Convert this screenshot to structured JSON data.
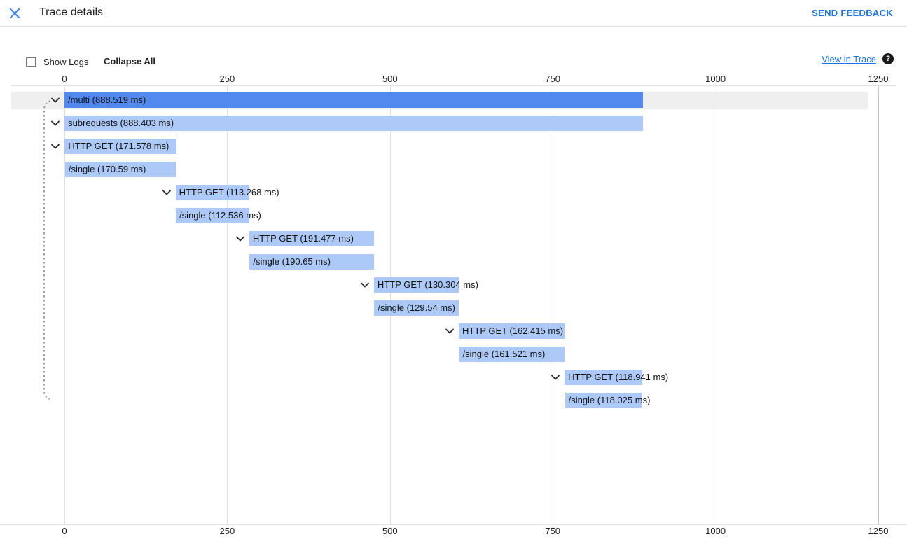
{
  "header": {
    "title": "Trace details",
    "close_icon": "close-x",
    "send_feedback_label": "SEND FEEDBACK"
  },
  "toolbar": {
    "show_logs_label": "Show Logs",
    "show_logs_checked": false,
    "collapse_all_label": "Collapse All",
    "view_in_trace_label": "View in Trace",
    "help_icon": "question-mark-circle"
  },
  "colors": {
    "accent_blue": "#1a73e8",
    "close_icon_blue": "#4285f4",
    "bar_selected": "#5189ee",
    "bar_normal": "#adc9f7",
    "selected_row_background": "#efefef",
    "gridline": "#e0e0e0",
    "trace_end_gridline": "#c8c8c8",
    "text": "#212121",
    "connector_dotted_line": "#9e9e9e"
  },
  "chart_data": {
    "type": "bar",
    "variant": "horizontal-trace-waterfall",
    "title": "Trace details",
    "unit": "ms",
    "xlim": [
      0,
      1250
    ],
    "axis_ticks_ms": [
      0,
      250,
      500,
      750,
      1000,
      1250
    ],
    "axis_shown": [
      "top",
      "bottom"
    ],
    "grid": true,
    "spans": [
      {
        "name": "/multi",
        "label": "/multi (888.519 ms)",
        "start_ms": 0,
        "duration_ms": 888.519,
        "expandable": true,
        "selected": true
      },
      {
        "name": "subrequests",
        "label": "subrequests (888.403 ms)",
        "start_ms": 0.1,
        "duration_ms": 888.403,
        "expandable": true,
        "selected": false
      },
      {
        "name": "HTTP GET",
        "label": "HTTP GET (171.578 ms)",
        "start_ms": 0.4,
        "duration_ms": 171.578,
        "expandable": true,
        "selected": false
      },
      {
        "name": "/single",
        "label": "/single (170.59 ms)",
        "start_ms": 0.9,
        "duration_ms": 170.59,
        "expandable": false,
        "selected": false
      },
      {
        "name": "HTTP GET",
        "label": "HTTP GET (113.268 ms)",
        "start_ms": 170.6,
        "duration_ms": 113.268,
        "expandable": true,
        "selected": false
      },
      {
        "name": "/single",
        "label": "/single (112.536 ms)",
        "start_ms": 171.1,
        "duration_ms": 112.536,
        "expandable": false,
        "selected": false
      },
      {
        "name": "HTTP GET",
        "label": "HTTP GET (191.477 ms)",
        "start_ms": 283.9,
        "duration_ms": 191.477,
        "expandable": true,
        "selected": false
      },
      {
        "name": "/single",
        "label": "/single (190.65 ms)",
        "start_ms": 284.4,
        "duration_ms": 190.65,
        "expandable": false,
        "selected": false
      },
      {
        "name": "HTTP GET",
        "label": "HTTP GET (130.304 ms)",
        "start_ms": 475.4,
        "duration_ms": 130.304,
        "expandable": true,
        "selected": false
      },
      {
        "name": "/single",
        "label": "/single (129.54 ms)",
        "start_ms": 475.9,
        "duration_ms": 129.54,
        "expandable": false,
        "selected": false
      },
      {
        "name": "HTTP GET",
        "label": "HTTP GET (162.415 ms)",
        "start_ms": 605.7,
        "duration_ms": 162.415,
        "expandable": true,
        "selected": false
      },
      {
        "name": "/single",
        "label": "/single (161.521 ms)",
        "start_ms": 606.2,
        "duration_ms": 161.521,
        "expandable": false,
        "selected": false
      },
      {
        "name": "HTTP GET",
        "label": "HTTP GET (118.941 ms)",
        "start_ms": 768.2,
        "duration_ms": 118.941,
        "expandable": true,
        "selected": false
      },
      {
        "name": "/single",
        "label": "/single (118.025 ms)",
        "start_ms": 768.7,
        "duration_ms": 118.025,
        "expandable": false,
        "selected": false
      }
    ]
  }
}
